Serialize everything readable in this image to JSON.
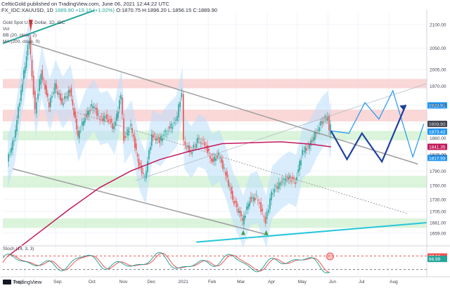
{
  "header": {
    "line1_prefix": "CelticGold published on TradingView.com, June 06, 2021 12:44:22 UTC",
    "symbol": "FX_IDC:XAUUSD, 1D",
    "price": "1889.90",
    "change": "+19.15 (+1.02%)",
    "ohlc": "O:1870.75 H:1896.20 L:1856.15 C:1889.90"
  },
  "indicators": {
    "title": "Gold Spot U.S. Dollar, 1D, IDC",
    "vol": "Vol",
    "bb": "BB (20, close, 2)",
    "ma": "MA (200, close, 0)",
    "stoch": "Stoch (14, 3, 3)"
  },
  "footer": {
    "brand": "TradingView"
  },
  "colors": {
    "up": "#26a69a",
    "down": "#ef5350",
    "ma200": "#c2185b",
    "channel": "#9e9e9e",
    "projection": "#1e3fa0",
    "projection_alt": "#2196f3",
    "teal_line": "#26c6da",
    "resistance_zone": "#f8c8c8",
    "support_zone": "#ccf0cc",
    "bb_fill": "#bbdefb"
  },
  "chart_data": {
    "type": "candlestick",
    "title": "Gold Spot U.S. Dollar, 1D, IDC",
    "x_ticks": [
      "Aug",
      "Sep",
      "Oct",
      "Nov",
      "Dec",
      "2021",
      "Feb",
      "Mar",
      "Apr",
      "May",
      "Jun",
      "Jul",
      "Aug"
    ],
    "y_ticks": [
      2100,
      2050,
      2005,
      1970,
      1930,
      1890,
      1860,
      1825,
      1790,
      1760,
      1730,
      1705,
      1681,
      1659
    ],
    "price_tags": [
      {
        "label": "1928.91",
        "value": 1928.91,
        "color": "#2196f3"
      },
      {
        "label": "1889.90",
        "value": 1889.9,
        "color": "#434651"
      },
      {
        "label": "1873.42",
        "value": 1873.42,
        "color": "#2196f3"
      },
      {
        "label": "1841.35",
        "value": 1841.35,
        "color": "#c2185b"
      },
      {
        "label": "1817.93",
        "value": 1817.93,
        "color": "#2196f3"
      }
    ],
    "stoch_tags": [
      {
        "label": "77.66",
        "color": "#ef5350"
      },
      {
        "label": "66.99",
        "color": "#26a69a"
      }
    ],
    "price_series": [
      [
        "2020-07-15",
        1810
      ],
      [
        "2020-07-22",
        1860
      ],
      [
        "2020-07-29",
        1960
      ],
      [
        "2020-08-06",
        2070
      ],
      [
        "2020-08-12",
        1915
      ],
      [
        "2020-08-18",
        2000
      ],
      [
        "2020-08-26",
        1930
      ],
      [
        "2020-09-01",
        1970
      ],
      [
        "2020-09-08",
        1935
      ],
      [
        "2020-09-16",
        1960
      ],
      [
        "2020-09-24",
        1865
      ],
      [
        "2020-10-01",
        1905
      ],
      [
        "2020-10-09",
        1930
      ],
      [
        "2020-10-16",
        1900
      ],
      [
        "2020-10-23",
        1905
      ],
      [
        "2020-10-30",
        1880
      ],
      [
        "2020-11-06",
        1950
      ],
      [
        "2020-11-09",
        1860
      ],
      [
        "2020-11-16",
        1885
      ],
      [
        "2020-11-24",
        1805
      ],
      [
        "2020-11-30",
        1776
      ],
      [
        "2020-12-07",
        1865
      ],
      [
        "2020-12-15",
        1855
      ],
      [
        "2020-12-22",
        1875
      ],
      [
        "2020-12-31",
        1895
      ],
      [
        "2021-01-06",
        1955
      ],
      [
        "2021-01-08",
        1850
      ],
      [
        "2021-01-15",
        1830
      ],
      [
        "2021-01-22",
        1855
      ],
      [
        "2021-01-29",
        1848
      ],
      [
        "2021-02-05",
        1812
      ],
      [
        "2021-02-12",
        1823
      ],
      [
        "2021-02-19",
        1784
      ],
      [
        "2021-02-26",
        1733
      ],
      [
        "2021-03-05",
        1700
      ],
      [
        "2021-03-08",
        1683
      ],
      [
        "2021-03-15",
        1730
      ],
      [
        "2021-03-22",
        1735
      ],
      [
        "2021-03-31",
        1684
      ],
      [
        "2021-04-06",
        1745
      ],
      [
        "2021-04-15",
        1765
      ],
      [
        "2021-04-23",
        1777
      ],
      [
        "2021-04-30",
        1769
      ],
      [
        "2021-05-07",
        1832
      ],
      [
        "2021-05-14",
        1843
      ],
      [
        "2021-05-21",
        1875
      ],
      [
        "2021-05-27",
        1895
      ],
      [
        "2021-06-01",
        1905
      ],
      [
        "2021-06-03",
        1870
      ],
      [
        "2021-06-04",
        1889.9
      ]
    ],
    "ma200_series": [
      [
        "2020-07-15",
        1610
      ],
      [
        "2020-08-15",
        1660
      ],
      [
        "2020-09-15",
        1710
      ],
      [
        "2020-10-15",
        1755
      ],
      [
        "2020-11-15",
        1790
      ],
      [
        "2020-12-15",
        1815
      ],
      [
        "2021-01-15",
        1833
      ],
      [
        "2021-02-15",
        1848
      ],
      [
        "2021-03-15",
        1850
      ],
      [
        "2021-04-15",
        1852
      ],
      [
        "2021-05-15",
        1847
      ],
      [
        "2021-06-04",
        1841.35
      ]
    ],
    "projection_main": [
      [
        "2021-06-04",
        1875
      ],
      [
        "2021-06-20",
        1815
      ],
      [
        "2021-07-05",
        1870
      ],
      [
        "2021-07-25",
        1810
      ],
      [
        "2021-08-18",
        1930
      ]
    ],
    "projection_alt": [
      [
        "2021-06-04",
        1875
      ],
      [
        "2021-06-22",
        1870
      ],
      [
        "2021-07-08",
        1935
      ],
      [
        "2021-07-22",
        1900
      ],
      [
        "2021-08-05",
        1960
      ],
      [
        "2021-08-25",
        1820
      ],
      [
        "2021-09-05",
        1890
      ]
    ],
    "zones": [
      {
        "kind": "resistance",
        "from": 1965,
        "to": 1985
      },
      {
        "kind": "resistance",
        "from": 1895,
        "to": 1920
      },
      {
        "kind": "support",
        "from": 1855,
        "to": 1875
      },
      {
        "kind": "support",
        "from": 1755,
        "to": 1780
      },
      {
        "kind": "support",
        "from": 1670,
        "to": 1690
      }
    ],
    "stoch_levels": [
      80,
      20
    ]
  }
}
